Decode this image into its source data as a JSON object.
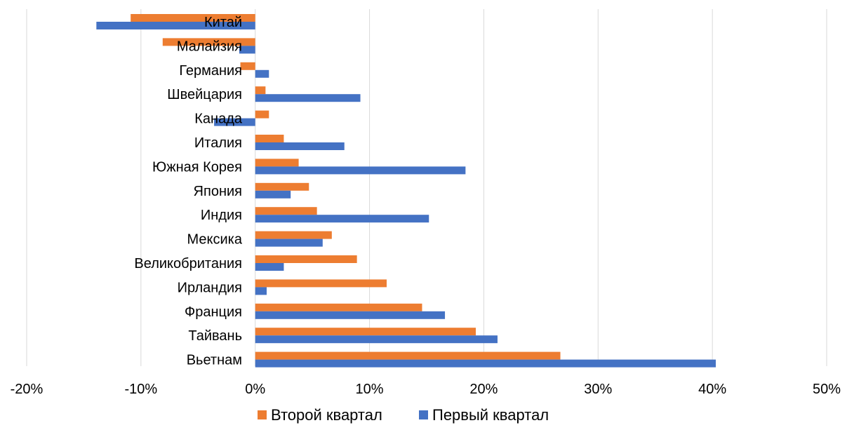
{
  "chart_data": {
    "type": "bar",
    "orientation": "horizontal",
    "categories": [
      "Китай",
      "Малайзия",
      "Германия",
      "Швейцария",
      "Канада",
      "Италия",
      "Южная Корея",
      "Япония",
      "Индия",
      "Мексика",
      "Великобритания",
      "Ирландия",
      "Франция",
      "Тайвань",
      "Вьетнам"
    ],
    "series": [
      {
        "name": "Второй квартал",
        "color": "#ED7D31",
        "values": [
          -10.9,
          -8.1,
          -1.3,
          0.9,
          1.2,
          2.5,
          3.8,
          4.7,
          5.4,
          6.7,
          8.9,
          11.5,
          14.6,
          19.3,
          26.7
        ]
      },
      {
        "name": "Первый квартал",
        "color": "#4472C4",
        "values": [
          -13.9,
          -1.4,
          1.2,
          9.2,
          -3.6,
          7.8,
          18.4,
          3.1,
          15.2,
          5.9,
          2.5,
          1.0,
          16.6,
          21.2,
          40.3
        ]
      }
    ],
    "xlim": [
      -20,
      50
    ],
    "xticks": [
      -20,
      -10,
      0,
      10,
      20,
      30,
      40,
      50
    ],
    "xtick_labels": [
      "-20%",
      "-10%",
      "0%",
      "10%",
      "20%",
      "30%",
      "40%",
      "50%"
    ],
    "grid": true,
    "legend_position": "bottom",
    "title": "",
    "xlabel": "",
    "ylabel": ""
  }
}
